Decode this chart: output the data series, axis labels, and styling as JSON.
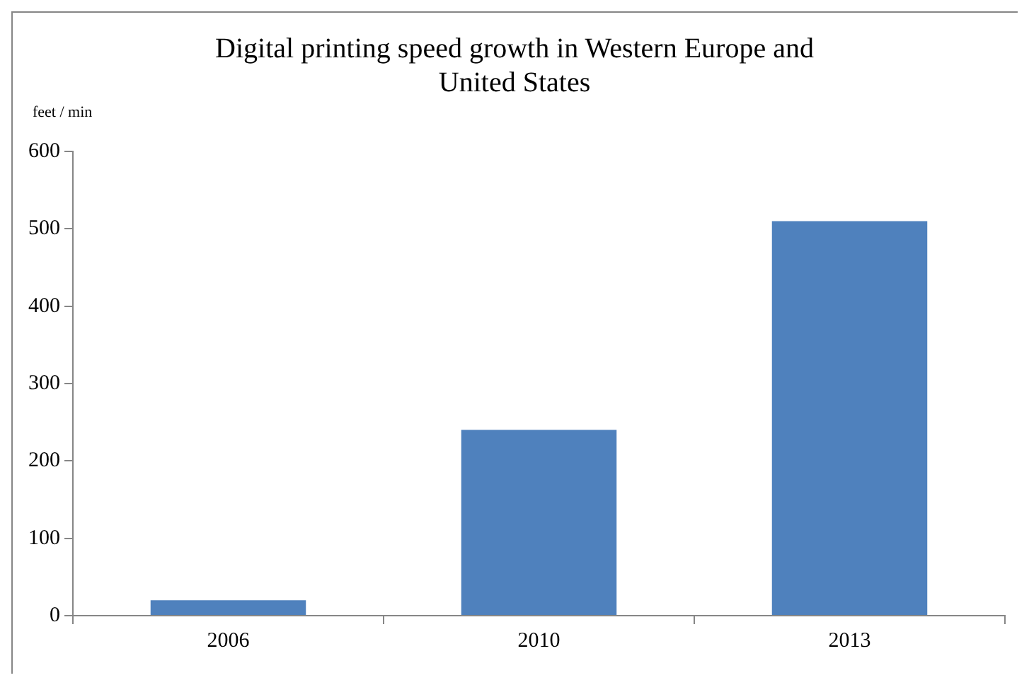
{
  "chart_data": {
    "type": "bar",
    "title": "Digital printing speed growth in Western Europe and United States",
    "ylabel": "feet / min",
    "categories": [
      "2006",
      "2010",
      "2013"
    ],
    "series": [
      {
        "color": "#4f81bd",
        "values": [
          20,
          240,
          510
        ]
      }
    ],
    "ylim": [
      0,
      600
    ],
    "yticks": [
      0,
      100,
      200,
      300,
      400,
      500,
      600
    ],
    "grid": false,
    "legend": false
  }
}
